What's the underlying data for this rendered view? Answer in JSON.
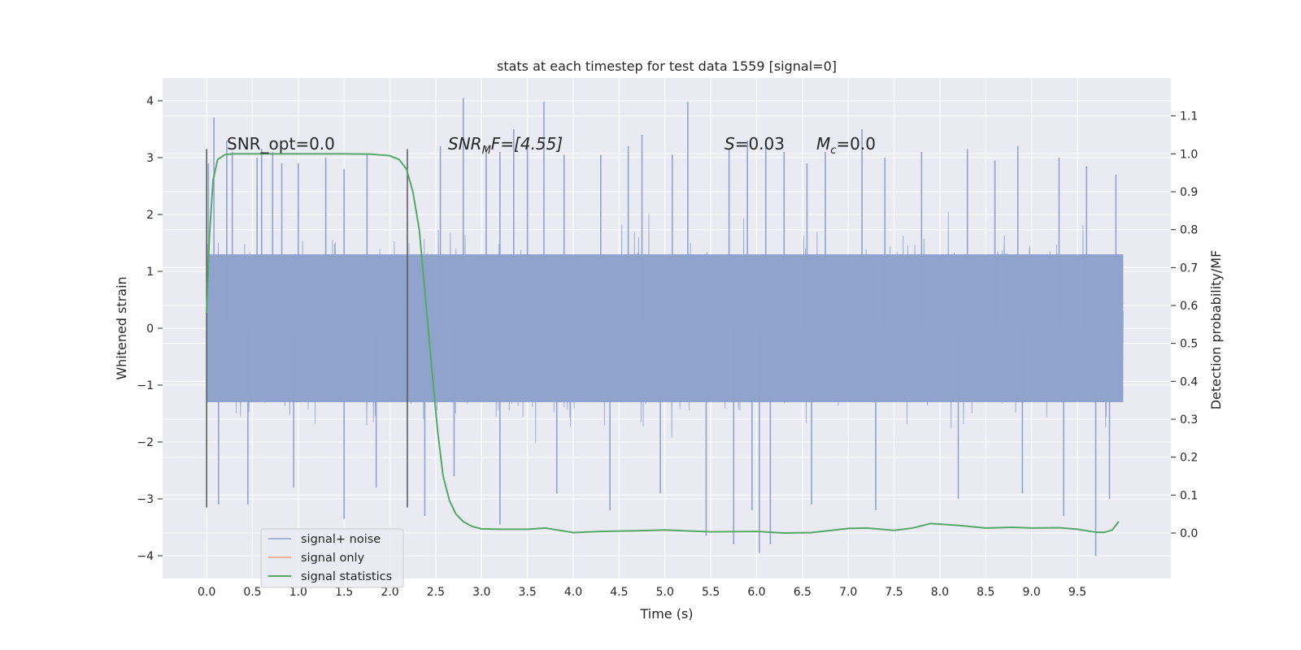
{
  "chart_data": {
    "type": "line",
    "title": "stats at each timestep for test data 1559 [signal=0]",
    "xlabel": "Time (s)",
    "ylabel": "Whitened strain",
    "y2label": "Detection probability/MF",
    "xlim": [
      -0.48,
      10.52
    ],
    "ylim": [
      -4.4,
      4.4
    ],
    "y2lim": [
      -0.12,
      1.2
    ],
    "x_ticks": [
      "0.0",
      "0.5",
      "1.0",
      "1.5",
      "2.0",
      "2.5",
      "3.0",
      "3.5",
      "4.0",
      "4.5",
      "5.0",
      "5.5",
      "6.0",
      "6.5",
      "7.0",
      "7.5",
      "8.0",
      "8.5",
      "9.0",
      "9.5"
    ],
    "y_ticks": [
      "−4",
      "−3",
      "−2",
      "−1",
      "0",
      "1",
      "2",
      "3",
      "4"
    ],
    "y2_ticks": [
      "0.0",
      "0.1",
      "0.2",
      "0.3",
      "0.4",
      "0.5",
      "0.6",
      "0.7",
      "0.8",
      "0.9",
      "1.0",
      "1.1"
    ],
    "grid": true,
    "legend_position": "lower-left",
    "vlines": [
      {
        "x": 0.0,
        "ymin": -3.15,
        "ymax": 3.15
      },
      {
        "x": 2.19,
        "ymin": -3.15,
        "ymax": 3.15
      }
    ],
    "annotations": {
      "snr_opt": "SNR_opt=0.0",
      "snr_mf_sym": "SNR",
      "snr_mf_sub": "M",
      "snr_mf_rest": "F=[4.55]",
      "s_sym": "S",
      "s_val": "=0.03",
      "mc_sym": "M",
      "mc_sub": "c",
      "mc_val": "=0.0"
    },
    "series": [
      {
        "name": "signal+ noise",
        "color": "#8fa3cc",
        "axis": "left",
        "x_range": [
          0.0,
          10.0
        ],
        "envelope_core": [
          -1.3,
          1.3
        ],
        "peaks": [
          [
            0.08,
            3.7
          ],
          [
            0.02,
            2.9
          ],
          [
            0.22,
            3.3
          ],
          [
            0.28,
            3.1
          ],
          [
            0.55,
            3.0
          ],
          [
            0.6,
            3.15
          ],
          [
            0.72,
            3.1
          ],
          [
            0.82,
            2.9
          ],
          [
            1.0,
            2.9
          ],
          [
            1.3,
            3.0
          ],
          [
            1.5,
            2.8
          ],
          [
            1.75,
            3.05
          ],
          [
            2.55,
            3.2
          ],
          [
            2.8,
            4.05
          ],
          [
            3.05,
            3.2
          ],
          [
            3.2,
            3.1
          ],
          [
            3.35,
            3.5
          ],
          [
            3.5,
            3.3
          ],
          [
            3.68,
            3.98
          ],
          [
            3.9,
            3.05
          ],
          [
            4.3,
            3.05
          ],
          [
            4.6,
            3.2
          ],
          [
            4.75,
            3.4
          ],
          [
            5.08,
            3.05
          ],
          [
            5.25,
            3.98
          ],
          [
            5.7,
            3.15
          ],
          [
            5.9,
            3.3
          ],
          [
            6.1,
            3.25
          ],
          [
            6.3,
            3.1
          ],
          [
            6.55,
            2.9
          ],
          [
            6.75,
            3.1
          ],
          [
            7.15,
            3.5
          ],
          [
            7.4,
            3.0
          ],
          [
            7.8,
            3.1
          ],
          [
            8.3,
            3.15
          ],
          [
            8.6,
            2.95
          ],
          [
            8.85,
            3.2
          ],
          [
            9.3,
            3.0
          ],
          [
            9.6,
            2.85
          ],
          [
            9.92,
            2.7
          ]
        ],
        "troughs": [
          [
            0.13,
            -3.1
          ],
          [
            0.45,
            -3.1
          ],
          [
            0.95,
            -2.8
          ],
          [
            1.5,
            -3.35
          ],
          [
            1.85,
            -2.8
          ],
          [
            2.38,
            -3.3
          ],
          [
            2.7,
            -2.6
          ],
          [
            3.2,
            -3.45
          ],
          [
            3.82,
            -2.9
          ],
          [
            4.4,
            -3.2
          ],
          [
            4.95,
            -2.9
          ],
          [
            5.45,
            -3.65
          ],
          [
            5.75,
            -3.8
          ],
          [
            5.95,
            -3.2
          ],
          [
            6.03,
            -3.95
          ],
          [
            6.15,
            -3.8
          ],
          [
            6.6,
            -3.1
          ],
          [
            7.3,
            -3.2
          ],
          [
            8.2,
            -3.0
          ],
          [
            8.9,
            -2.9
          ],
          [
            9.35,
            -3.3
          ],
          [
            9.7,
            -4.0
          ],
          [
            9.85,
            -3.0
          ]
        ]
      },
      {
        "name": "signal only",
        "color": "#e8a480",
        "axis": "left",
        "x": [],
        "y": []
      },
      {
        "name": "signal statistics",
        "color": "#55a868",
        "axis": "right",
        "x": [
          0.0,
          0.03,
          0.07,
          0.12,
          0.2,
          0.3,
          0.5,
          1.0,
          1.5,
          1.8,
          2.0,
          2.1,
          2.18,
          2.25,
          2.32,
          2.38,
          2.45,
          2.52,
          2.58,
          2.65,
          2.72,
          2.8,
          2.9,
          3.0,
          3.2,
          3.5,
          3.7,
          4.0,
          4.3,
          4.7,
          5.0,
          5.5,
          6.0,
          6.3,
          6.6,
          7.0,
          7.2,
          7.5,
          7.7,
          7.9,
          8.2,
          8.5,
          8.8,
          9.0,
          9.3,
          9.5,
          9.7,
          9.8,
          9.88,
          9.95
        ],
        "y": [
          0.58,
          0.78,
          0.93,
          0.985,
          0.998,
          1.0,
          1.0,
          1.0,
          1.0,
          0.999,
          0.995,
          0.985,
          0.96,
          0.9,
          0.8,
          0.64,
          0.45,
          0.27,
          0.15,
          0.085,
          0.05,
          0.03,
          0.017,
          0.011,
          0.01,
          0.01,
          0.013,
          0.001,
          0.004,
          0.006,
          0.008,
          0.003,
          0.004,
          0.0,
          0.001,
          0.012,
          0.013,
          0.007,
          0.013,
          0.025,
          0.02,
          0.013,
          0.015,
          0.013,
          0.014,
          0.01,
          0.002,
          0.002,
          0.008,
          0.03
        ]
      }
    ]
  }
}
